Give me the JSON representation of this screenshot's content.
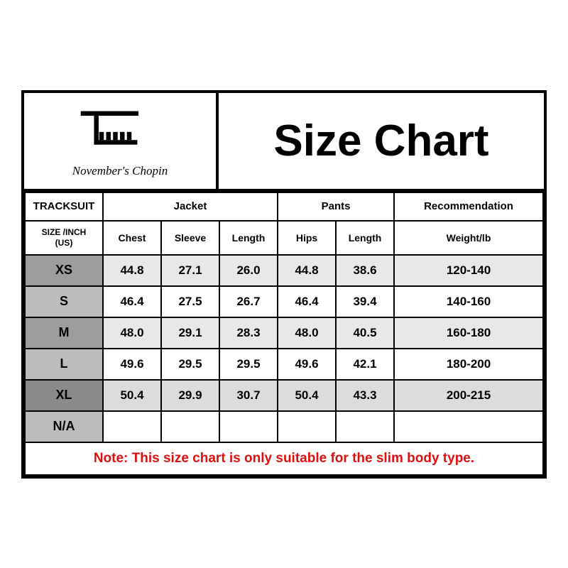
{
  "brand_name": "November's Chopin",
  "title": "Size Chart",
  "section_label": "TRACKSUIT",
  "size_header_line1": "SIZE /INCH",
  "size_header_line2": "(US)",
  "groups": {
    "jacket": "Jacket",
    "pants": "Pants",
    "rec": "Recommendation"
  },
  "columns": {
    "chest": "Chest",
    "sleeve": "Sleeve",
    "jlength": "Length",
    "hips": "Hips",
    "plength": "Length",
    "weight": "Weight/lb"
  },
  "rows": [
    {
      "size": "XS",
      "chest": "44.8",
      "sleeve": "27.1",
      "jlength": "26.0",
      "hips": "44.8",
      "plength": "38.6",
      "weight": "120-140",
      "tone": "row-dark"
    },
    {
      "size": "S",
      "chest": "46.4",
      "sleeve": "27.5",
      "jlength": "26.7",
      "hips": "46.4",
      "plength": "39.4",
      "weight": "140-160",
      "tone": "row-light"
    },
    {
      "size": "M",
      "chest": "48.0",
      "sleeve": "29.1",
      "jlength": "28.3",
      "hips": "48.0",
      "plength": "40.5",
      "weight": "160-180",
      "tone": "row-dark"
    },
    {
      "size": "L",
      "chest": "49.6",
      "sleeve": "29.5",
      "jlength": "29.5",
      "hips": "49.6",
      "plength": "42.1",
      "weight": "180-200",
      "tone": "row-light"
    },
    {
      "size": "XL",
      "chest": "50.4",
      "sleeve": "29.9",
      "jlength": "30.7",
      "hips": "50.4",
      "plength": "43.3",
      "weight": "200-215",
      "tone": "row-darker"
    },
    {
      "size": "N/A",
      "chest": "",
      "sleeve": "",
      "jlength": "",
      "hips": "",
      "plength": "",
      "weight": "",
      "tone": "row-light"
    }
  ],
  "note": "Note: This size chart is only suitable for the slim body type.",
  "colors": {
    "border": "#000000",
    "note_text": "#dd1010",
    "row_dark_bg": "#e8e8e8",
    "row_dark_sizebg": "#9d9d9d",
    "row_light_bg": "#ffffff",
    "row_light_sizebg": "#bcbcbc",
    "row_darker_bg": "#dcdcdc",
    "row_darker_sizebg": "#8a8a8a"
  }
}
